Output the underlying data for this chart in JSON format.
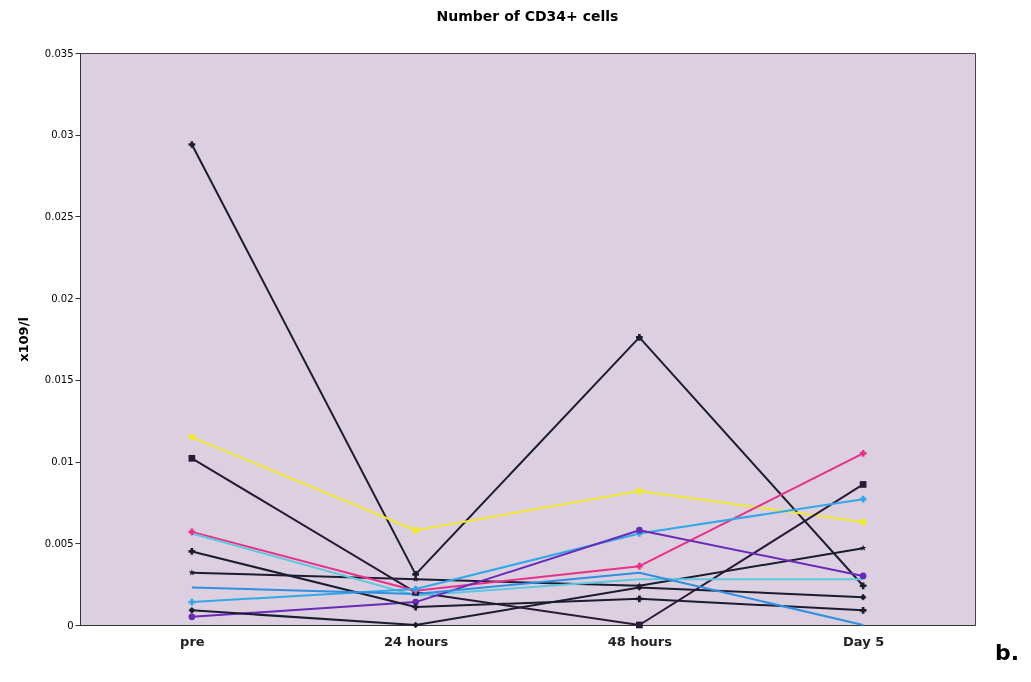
{
  "chart_data": {
    "type": "line",
    "title": "Number of CD34+ cells",
    "ylabel": "x109/l",
    "categories": [
      "pre",
      "24 hours",
      "48 hours",
      "Day 5"
    ],
    "ylim": [
      0,
      0.035
    ],
    "yticks": [
      0,
      0.005,
      0.01,
      0.015,
      0.02,
      0.025,
      0.03,
      0.035
    ],
    "grid": false,
    "legend": false,
    "annotations": [
      "b."
    ],
    "series": [
      {
        "color": "#1c1c30",
        "marker": "cross",
        "values": [
          0.0294,
          0.0031,
          0.0176,
          0.0024
        ]
      },
      {
        "color": "#1c1c30",
        "marker": "star",
        "values": [
          0.0032,
          0.0028,
          0.0024,
          0.0047
        ]
      },
      {
        "color": "#f0e830",
        "marker": "circle",
        "values": [
          0.0115,
          0.0058,
          0.0082,
          0.0063
        ]
      },
      {
        "color": "#2a1a3a",
        "marker": "square",
        "values": [
          0.0102,
          0.002,
          0,
          0.0086
        ]
      },
      {
        "color": "#e8308a",
        "marker": "cross",
        "values": [
          0.0057,
          0.0021,
          0.0036,
          0.0105
        ]
      },
      {
        "color": "#5bc8e0",
        "marker": "none",
        "values": [
          0.0056,
          0.0018,
          0.0028,
          0.0028
        ]
      },
      {
        "color": "#33a8e8",
        "marker": "cross",
        "values": [
          0.0014,
          0.0022,
          0.0056,
          0.0077
        ]
      },
      {
        "color": "#6a2ab8",
        "marker": "circle",
        "values": [
          0.0005,
          0.0014,
          0.0058,
          0.003
        ]
      },
      {
        "color": "#1c1c30",
        "marker": "cross",
        "values": [
          0.0045,
          0.0011,
          0.0016,
          0.0009
        ]
      },
      {
        "color": "#1c1c30",
        "marker": "diamond",
        "values": [
          0.0009,
          0,
          0.0023,
          0.0017
        ]
      },
      {
        "color": "#2f8fe0",
        "marker": "none",
        "values": [
          0.0023,
          0.0019,
          0.0032,
          0
        ]
      }
    ]
  }
}
